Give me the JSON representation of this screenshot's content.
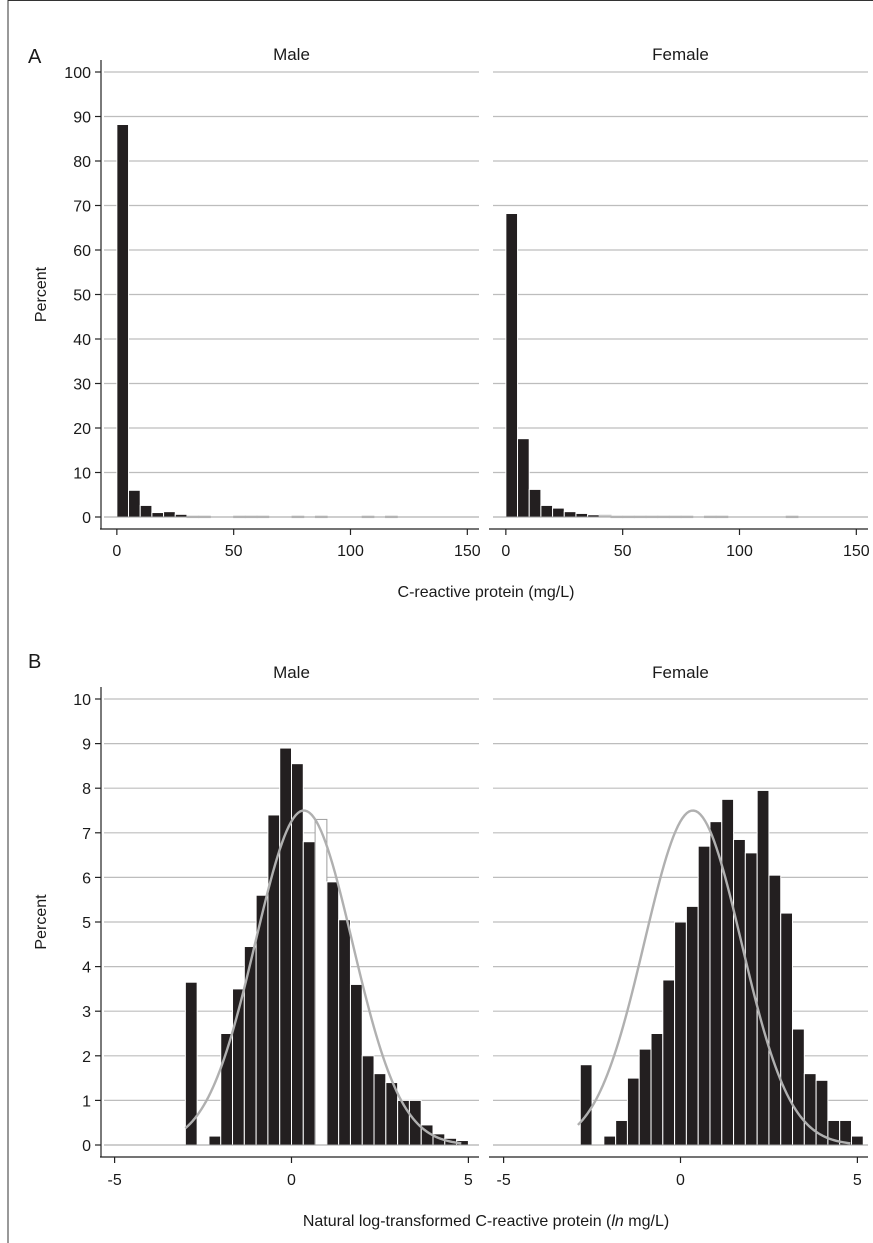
{
  "chart_data": [
    {
      "panel": "A",
      "type": "bar",
      "ylabel": "Percent",
      "xlabel": "C-reactive protein (mg/L)",
      "xlim": [
        0,
        150
      ],
      "ylim": [
        0,
        100
      ],
      "xticks": [
        "0",
        "50",
        "100",
        "150"
      ],
      "yticks": [
        "0",
        "10",
        "20",
        "30",
        "40",
        "50",
        "60",
        "70",
        "80",
        "90",
        "100"
      ],
      "bin_width": 5,
      "facets": [
        {
          "label": "Male",
          "bins": [
            {
              "x0": 0,
              "y": 88.2
            },
            {
              "x0": 5,
              "y": 6.0
            },
            {
              "x0": 10,
              "y": 2.6
            },
            {
              "x0": 15,
              "y": 1.0
            },
            {
              "x0": 20,
              "y": 1.2
            },
            {
              "x0": 25,
              "y": 0.6
            },
            {
              "x0": 30,
              "y": 0.2
            },
            {
              "x0": 35,
              "y": 0.2
            },
            {
              "x0": 50,
              "y": 0.2
            },
            {
              "x0": 55,
              "y": 0.2
            },
            {
              "x0": 60,
              "y": 0.2
            },
            {
              "x0": 75,
              "y": 0.2
            },
            {
              "x0": 85,
              "y": 0.2
            },
            {
              "x0": 105,
              "y": 0.2
            },
            {
              "x0": 115,
              "y": 0.2
            }
          ]
        },
        {
          "label": "Female",
          "bins": [
            {
              "x0": 0,
              "y": 68.2
            },
            {
              "x0": 5,
              "y": 17.6
            },
            {
              "x0": 10,
              "y": 6.2
            },
            {
              "x0": 15,
              "y": 2.6
            },
            {
              "x0": 20,
              "y": 2.0
            },
            {
              "x0": 25,
              "y": 1.2
            },
            {
              "x0": 30,
              "y": 0.8
            },
            {
              "x0": 35,
              "y": 0.5
            },
            {
              "x0": 40,
              "y": 0.4
            },
            {
              "x0": 45,
              "y": 0.2
            },
            {
              "x0": 50,
              "y": 0.2
            },
            {
              "x0": 55,
              "y": 0.2
            },
            {
              "x0": 60,
              "y": 0.2
            },
            {
              "x0": 65,
              "y": 0.2
            },
            {
              "x0": 70,
              "y": 0.2
            },
            {
              "x0": 75,
              "y": 0.2
            },
            {
              "x0": 85,
              "y": 0.2
            },
            {
              "x0": 90,
              "y": 0.2
            },
            {
              "x0": 120,
              "y": 0.2
            }
          ]
        }
      ]
    },
    {
      "panel": "B",
      "type": "bar",
      "ylabel": "Percent",
      "xlabel_prefix": "Natural log-transformed C-reactive protein (",
      "xlabel_italic": "ln",
      "xlabel_suffix": " mg/L)",
      "xlim": [
        -5,
        5
      ],
      "ylim": [
        0,
        10
      ],
      "xticks": [
        "-5",
        "0",
        "5"
      ],
      "yticks": [
        "0",
        "1",
        "2",
        "3",
        "4",
        "5",
        "6",
        "7",
        "8",
        "9",
        "10"
      ],
      "bin_width": 0.333,
      "normal_curve": {
        "mean": 0.35,
        "sd": 1.37,
        "peak": 7.5
      },
      "facets": [
        {
          "label": "Male",
          "curve_x_range": [
            -3.0,
            4.8
          ],
          "bins": [
            {
              "x0": -3.0,
              "y": 3.65
            },
            {
              "x0": -2.667,
              "y": 0.0
            },
            {
              "x0": -2.333,
              "y": 0.2
            },
            {
              "x0": -2.0,
              "y": 2.5
            },
            {
              "x0": -1.667,
              "y": 3.5
            },
            {
              "x0": -1.333,
              "y": 4.45
            },
            {
              "x0": -1.0,
              "y": 5.6
            },
            {
              "x0": -0.667,
              "y": 7.4
            },
            {
              "x0": -0.333,
              "y": 8.9
            },
            {
              "x0": 0.0,
              "y": 8.55
            },
            {
              "x0": 0.333,
              "y": 6.8
            },
            {
              "x0": 0.667,
              "y": 7.3,
              "open": true
            },
            {
              "x0": 1.0,
              "y": 5.9
            },
            {
              "x0": 1.333,
              "y": 5.05
            },
            {
              "x0": 1.667,
              "y": 3.6
            },
            {
              "x0": 2.0,
              "y": 2.0
            },
            {
              "x0": 2.333,
              "y": 1.6
            },
            {
              "x0": 2.667,
              "y": 1.4
            },
            {
              "x0": 3.0,
              "y": 1.0
            },
            {
              "x0": 3.333,
              "y": 1.0
            },
            {
              "x0": 3.667,
              "y": 0.45
            },
            {
              "x0": 4.0,
              "y": 0.25
            },
            {
              "x0": 4.333,
              "y": 0.15
            },
            {
              "x0": 4.667,
              "y": 0.1
            }
          ]
        },
        {
          "label": "Female",
          "curve_x_range": [
            -2.9,
            4.8
          ],
          "bins": [
            {
              "x0": -2.833,
              "y": 1.8
            },
            {
              "x0": -2.5,
              "y": 0.0
            },
            {
              "x0": -2.167,
              "y": 0.2
            },
            {
              "x0": -1.833,
              "y": 0.55
            },
            {
              "x0": -1.5,
              "y": 1.5
            },
            {
              "x0": -1.167,
              "y": 2.15
            },
            {
              "x0": -0.833,
              "y": 2.5
            },
            {
              "x0": -0.5,
              "y": 3.7
            },
            {
              "x0": -0.167,
              "y": 5.0
            },
            {
              "x0": 0.167,
              "y": 5.35
            },
            {
              "x0": 0.5,
              "y": 6.7
            },
            {
              "x0": 0.833,
              "y": 7.25
            },
            {
              "x0": 1.167,
              "y": 7.75
            },
            {
              "x0": 1.5,
              "y": 6.85
            },
            {
              "x0": 1.833,
              "y": 6.55
            },
            {
              "x0": 2.167,
              "y": 7.95
            },
            {
              "x0": 2.5,
              "y": 6.05
            },
            {
              "x0": 2.833,
              "y": 5.2
            },
            {
              "x0": 3.167,
              "y": 2.6
            },
            {
              "x0": 3.5,
              "y": 1.6
            },
            {
              "x0": 3.833,
              "y": 1.45
            },
            {
              "x0": 4.167,
              "y": 0.55
            },
            {
              "x0": 4.5,
              "y": 0.55
            },
            {
              "x0": 4.833,
              "y": 0.2
            }
          ]
        }
      ]
    }
  ]
}
